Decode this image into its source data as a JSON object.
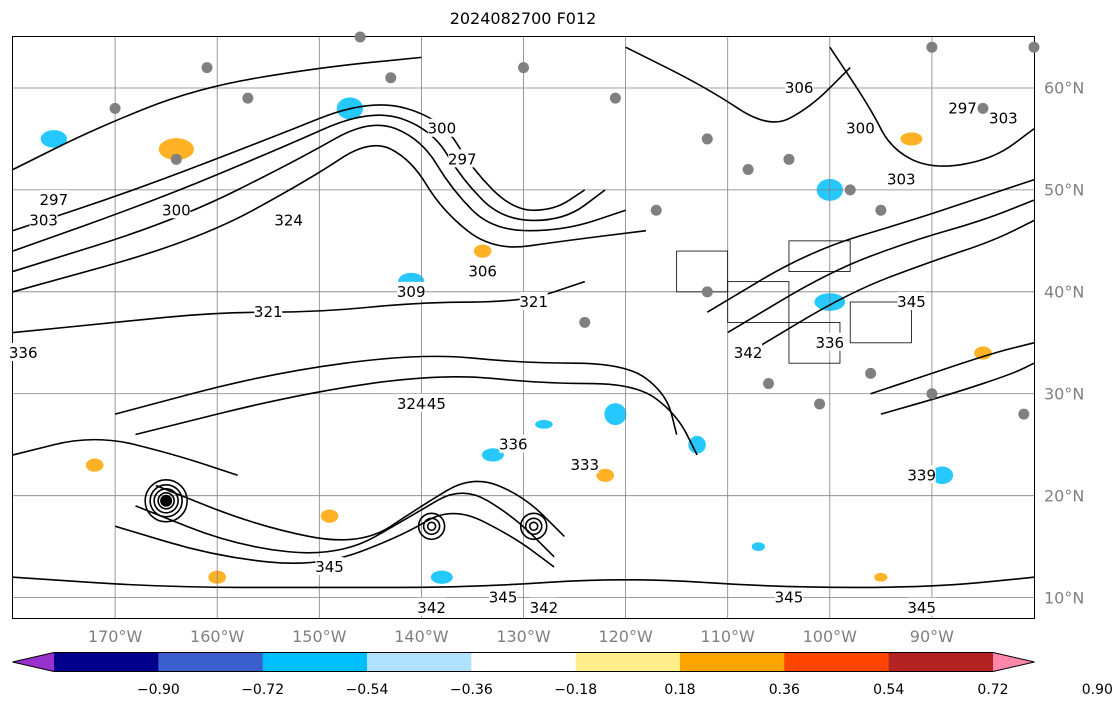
{
  "title": "2024082700 F012",
  "lat_labels": [
    {
      "text": "60°N",
      "lat": 60
    },
    {
      "text": "50°N",
      "lat": 50
    },
    {
      "text": "40°N",
      "lat": 40
    },
    {
      "text": "30°N",
      "lat": 30
    },
    {
      "text": "20°N",
      "lat": 20
    },
    {
      "text": "10°N",
      "lat": 10
    }
  ],
  "lon_labels": [
    {
      "text": "170°W",
      "lon": -170
    },
    {
      "text": "160°W",
      "lon": -160
    },
    {
      "text": "150°W",
      "lon": -150
    },
    {
      "text": "140°W",
      "lon": -140
    },
    {
      "text": "130°W",
      "lon": -130
    },
    {
      "text": "120°W",
      "lon": -120
    },
    {
      "text": "110°W",
      "lon": -110
    },
    {
      "text": "100°W",
      "lon": -100
    },
    {
      "text": "90°W",
      "lon": -90
    }
  ],
  "map_extent": {
    "lon_min": -180,
    "lon_max": -80,
    "lat_min": 8,
    "lat_max": 65
  },
  "contour_labels": [
    {
      "text": "297",
      "lon": -176,
      "lat": 49
    },
    {
      "text": "303",
      "lon": -177,
      "lat": 47
    },
    {
      "text": "300",
      "lon": -164,
      "lat": 48
    },
    {
      "text": "324",
      "lon": -153,
      "lat": 47
    },
    {
      "text": "321",
      "lon": -155,
      "lat": 38
    },
    {
      "text": "309",
      "lon": -141,
      "lat": 40
    },
    {
      "text": "306",
      "lon": -134,
      "lat": 42
    },
    {
      "text": "321",
      "lon": -129,
      "lat": 39
    },
    {
      "text": "300",
      "lon": -138,
      "lat": 56
    },
    {
      "text": "297",
      "lon": -136,
      "lat": 53
    },
    {
      "text": "306",
      "lon": -103,
      "lat": 60
    },
    {
      "text": "300",
      "lon": -97,
      "lat": 56
    },
    {
      "text": "303",
      "lon": -93,
      "lat": 51
    },
    {
      "text": "297",
      "lon": -87,
      "lat": 58
    },
    {
      "text": "303",
      "lon": -83,
      "lat": 57
    },
    {
      "text": "345",
      "lon": -92,
      "lat": 39
    },
    {
      "text": "342",
      "lon": -108,
      "lat": 34
    },
    {
      "text": "336",
      "lon": -100,
      "lat": 35
    },
    {
      "text": "336",
      "lon": -131,
      "lat": 25
    },
    {
      "text": "333",
      "lon": -124,
      "lat": 23
    },
    {
      "text": "345",
      "lon": -139,
      "lat": 29
    },
    {
      "text": "324",
      "lon": -141,
      "lat": 29
    },
    {
      "text": "345",
      "lon": -149,
      "lat": 13
    },
    {
      "text": "342",
      "lon": -139,
      "lat": 9
    },
    {
      "text": "345",
      "lon": -132,
      "lat": 10
    },
    {
      "text": "342",
      "lon": -128,
      "lat": 9
    },
    {
      "text": "345",
      "lon": -104,
      "lat": 10
    },
    {
      "text": "345",
      "lon": -91,
      "lat": 9
    },
    {
      "text": "336",
      "lon": -179,
      "lat": 34
    },
    {
      "text": "339",
      "lon": -91,
      "lat": 22
    }
  ],
  "station_dots": [
    {
      "lon": -164,
      "lat": 53
    },
    {
      "lon": -170,
      "lat": 58
    },
    {
      "lon": -161,
      "lat": 62
    },
    {
      "lon": -146,
      "lat": 65
    },
    {
      "lon": -143,
      "lat": 61
    },
    {
      "lon": -130,
      "lat": 62
    },
    {
      "lon": -121,
      "lat": 59
    },
    {
      "lon": -112,
      "lat": 55
    },
    {
      "lon": -108,
      "lat": 52
    },
    {
      "lon": -104,
      "lat": 53
    },
    {
      "lon": -98,
      "lat": 50
    },
    {
      "lon": -95,
      "lat": 48
    },
    {
      "lon": -90,
      "lat": 64
    },
    {
      "lon": -85,
      "lat": 58
    },
    {
      "lon": -80,
      "lat": 64
    },
    {
      "lon": -117,
      "lat": 48
    },
    {
      "lon": -112,
      "lat": 40
    },
    {
      "lon": -106,
      "lat": 31
    },
    {
      "lon": -101,
      "lat": 29
    },
    {
      "lon": -96,
      "lat": 32
    },
    {
      "lon": -90,
      "lat": 30
    },
    {
      "lon": -81,
      "lat": 28
    },
    {
      "lon": -124,
      "lat": 37
    },
    {
      "lon": -157,
      "lat": 59
    }
  ],
  "colorbar": {
    "colors": [
      "#9932cc",
      "#00008b",
      "#3a5fcd",
      "#00bfff",
      "#b0e2ff",
      "#ffffff",
      "#ffec8b",
      "#ffa500",
      "#ff4500",
      "#b22222",
      "#ff88aa"
    ],
    "ticks": [
      "−0.90",
      "−0.72",
      "−0.54",
      "−0.36",
      "−0.18",
      "0.18",
      "0.36",
      "0.54",
      "0.72",
      "0.90"
    ]
  }
}
